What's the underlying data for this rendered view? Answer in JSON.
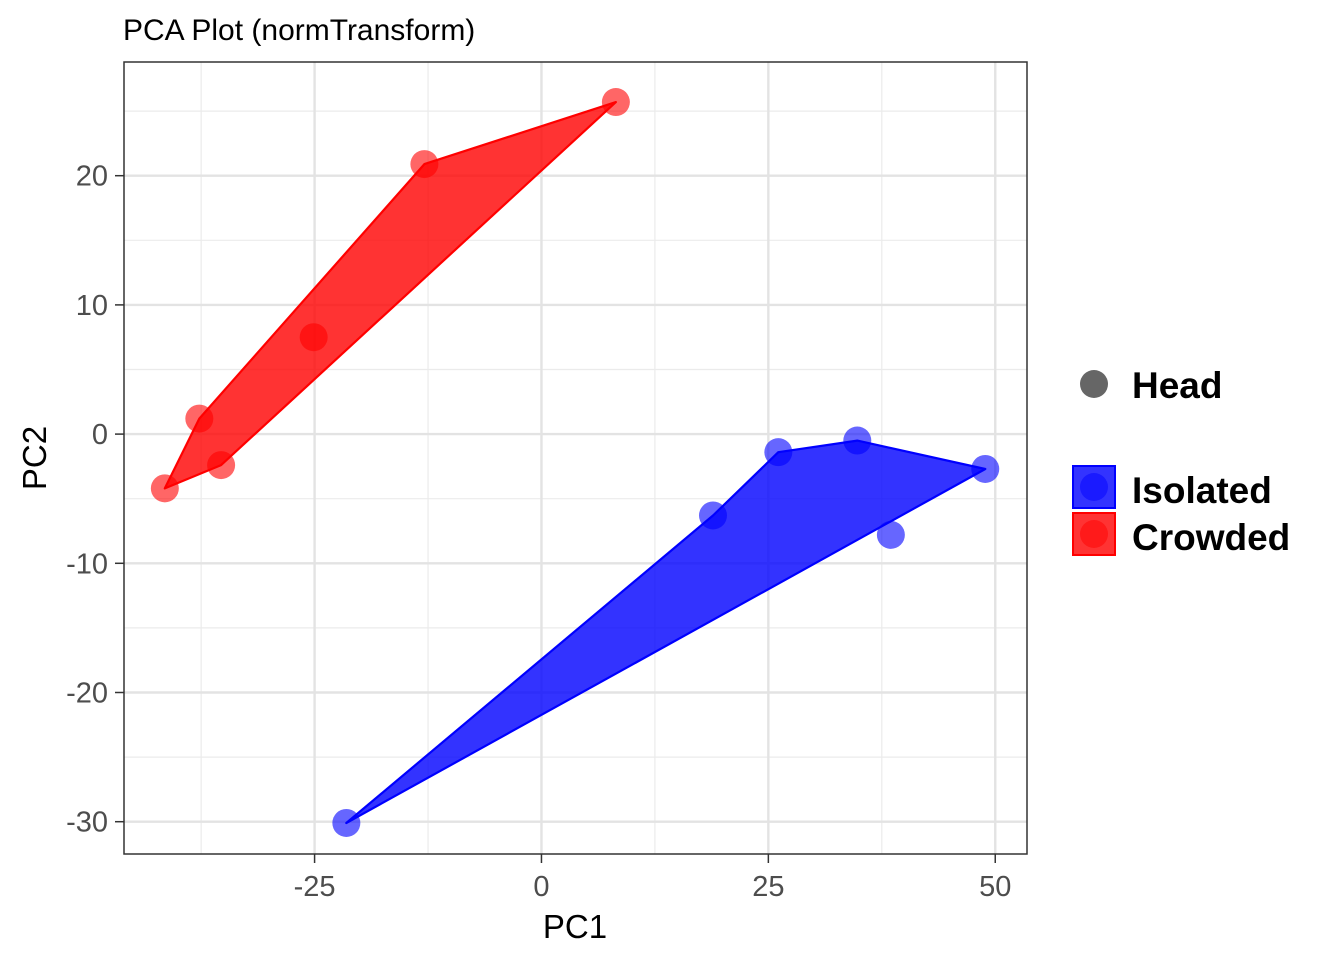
{
  "chart_data": {
    "type": "scatter",
    "title": "PCA Plot (normTransform)",
    "xlabel": "PC1",
    "ylabel": "PC2",
    "xlim": [
      -46,
      53.5
    ],
    "ylim": [
      -32.5,
      28.8
    ],
    "xticks": [
      -25,
      0,
      25,
      50
    ],
    "yticks": [
      20,
      10,
      0,
      -10,
      -20,
      -30
    ],
    "x_tick_labels": [
      "-25",
      "0",
      "25",
      "50"
    ],
    "y_tick_labels": [
      "20",
      "10",
      "0",
      "-10",
      "-20",
      "-30"
    ],
    "grid": true,
    "legend_position": "right",
    "shape_legend": {
      "label": "Head",
      "color": "#666666"
    },
    "series": [
      {
        "name": "Isolated",
        "color": "#0000ff",
        "points": [
          {
            "x": -21.5,
            "y": -30.1
          },
          {
            "x": 18.9,
            "y": -6.3
          },
          {
            "x": 26.1,
            "y": -1.4
          },
          {
            "x": 34.8,
            "y": -0.5
          },
          {
            "x": 38.5,
            "y": -7.8
          },
          {
            "x": 48.9,
            "y": -2.7
          }
        ],
        "hull": [
          [
            -21.5,
            -30.1
          ],
          [
            18.9,
            -6.3
          ],
          [
            26.1,
            -1.4
          ],
          [
            34.8,
            -0.5
          ],
          [
            48.9,
            -2.7
          ]
        ]
      },
      {
        "name": "Crowded",
        "color": "#ff0000",
        "points": [
          {
            "x": -41.5,
            "y": -4.2
          },
          {
            "x": -37.7,
            "y": 1.2
          },
          {
            "x": -35.3,
            "y": -2.4
          },
          {
            "x": -25.1,
            "y": 7.5
          },
          {
            "x": -12.9,
            "y": 20.9
          },
          {
            "x": 8.2,
            "y": 25.7
          }
        ],
        "hull": [
          [
            -41.5,
            -4.2
          ],
          [
            -37.7,
            1.2
          ],
          [
            -12.9,
            20.9
          ],
          [
            8.2,
            25.7
          ],
          [
            -35.3,
            -2.4
          ]
        ]
      }
    ]
  }
}
